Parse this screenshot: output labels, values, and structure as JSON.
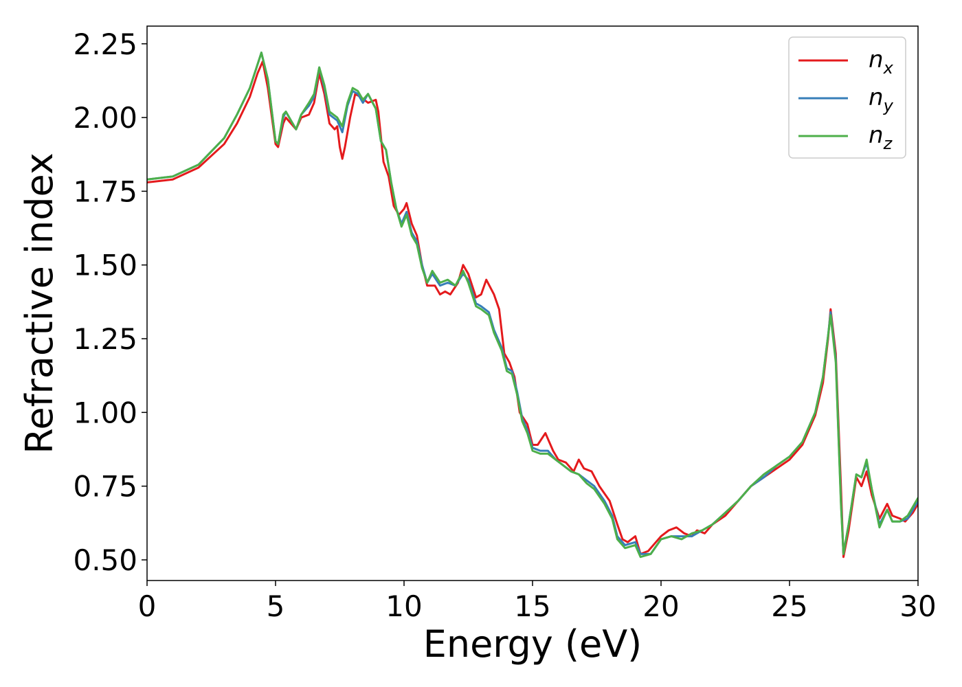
{
  "chart_data": {
    "type": "line",
    "title": "",
    "xlabel": "Energy (eV)",
    "ylabel": "Refractive index",
    "xlim": [
      0,
      30
    ],
    "ylim": [
      0.43,
      2.31
    ],
    "xticks": [
      0,
      5,
      10,
      15,
      20,
      25,
      30
    ],
    "xtick_labels": [
      "0",
      "5",
      "10",
      "15",
      "20",
      "25",
      "30"
    ],
    "yticks": [
      0.5,
      0.75,
      1.0,
      1.25,
      1.5,
      1.75,
      2.0,
      2.25
    ],
    "ytick_labels": [
      "0.50",
      "0.75",
      "1.00",
      "1.25",
      "1.50",
      "1.75",
      "2.00",
      "2.25"
    ],
    "grid": false,
    "legend_position": "top-right",
    "series": [
      {
        "name": "n",
        "subscript": "x",
        "color": "#e41a1c",
        "points": [
          [
            0,
            1.78
          ],
          [
            1,
            1.79
          ],
          [
            2,
            1.83
          ],
          [
            3,
            1.91
          ],
          [
            3.5,
            1.98
          ],
          [
            4,
            2.07
          ],
          [
            4.3,
            2.15
          ],
          [
            4.5,
            2.19
          ],
          [
            4.7,
            2.1
          ],
          [
            5.0,
            1.91
          ],
          [
            5.1,
            1.9
          ],
          [
            5.3,
            1.98
          ],
          [
            5.4,
            2.0
          ],
          [
            5.6,
            1.98
          ],
          [
            5.8,
            1.96
          ],
          [
            6.0,
            2.0
          ],
          [
            6.3,
            2.01
          ],
          [
            6.5,
            2.05
          ],
          [
            6.7,
            2.15
          ],
          [
            6.9,
            2.08
          ],
          [
            7.1,
            1.98
          ],
          [
            7.3,
            1.96
          ],
          [
            7.4,
            1.97
          ],
          [
            7.5,
            1.9
          ],
          [
            7.6,
            1.86
          ],
          [
            7.7,
            1.9
          ],
          [
            7.9,
            2.0
          ],
          [
            8.1,
            2.08
          ],
          [
            8.3,
            2.07
          ],
          [
            8.6,
            2.05
          ],
          [
            8.9,
            2.06
          ],
          [
            9.0,
            2.02
          ],
          [
            9.2,
            1.85
          ],
          [
            9.4,
            1.8
          ],
          [
            9.6,
            1.7
          ],
          [
            9.8,
            1.67
          ],
          [
            10.0,
            1.69
          ],
          [
            10.1,
            1.71
          ],
          [
            10.3,
            1.64
          ],
          [
            10.5,
            1.6
          ],
          [
            10.7,
            1.5
          ],
          [
            10.9,
            1.43
          ],
          [
            11.2,
            1.43
          ],
          [
            11.4,
            1.4
          ],
          [
            11.6,
            1.41
          ],
          [
            11.8,
            1.4
          ],
          [
            12.1,
            1.44
          ],
          [
            12.3,
            1.5
          ],
          [
            12.5,
            1.47
          ],
          [
            12.8,
            1.39
          ],
          [
            13.0,
            1.4
          ],
          [
            13.2,
            1.45
          ],
          [
            13.5,
            1.4
          ],
          [
            13.7,
            1.35
          ],
          [
            13.9,
            1.2
          ],
          [
            14.1,
            1.17
          ],
          [
            14.3,
            1.12
          ],
          [
            14.5,
            1.0
          ],
          [
            14.8,
            0.96
          ],
          [
            15.0,
            0.89
          ],
          [
            15.2,
            0.89
          ],
          [
            15.5,
            0.93
          ],
          [
            15.8,
            0.87
          ],
          [
            16.0,
            0.84
          ],
          [
            16.3,
            0.83
          ],
          [
            16.6,
            0.8
          ],
          [
            16.8,
            0.84
          ],
          [
            17.0,
            0.81
          ],
          [
            17.3,
            0.8
          ],
          [
            17.6,
            0.75
          ],
          [
            18.0,
            0.7
          ],
          [
            18.3,
            0.62
          ],
          [
            18.5,
            0.57
          ],
          [
            18.7,
            0.56
          ],
          [
            19.0,
            0.58
          ],
          [
            19.2,
            0.52
          ],
          [
            19.5,
            0.53
          ],
          [
            19.8,
            0.56
          ],
          [
            20.0,
            0.58
          ],
          [
            20.3,
            0.6
          ],
          [
            20.6,
            0.61
          ],
          [
            20.9,
            0.59
          ],
          [
            21.2,
            0.58
          ],
          [
            21.4,
            0.6
          ],
          [
            21.7,
            0.59
          ],
          [
            22.0,
            0.62
          ],
          [
            22.5,
            0.65
          ],
          [
            23.0,
            0.7
          ],
          [
            23.5,
            0.75
          ],
          [
            24.0,
            0.78
          ],
          [
            24.5,
            0.81
          ],
          [
            25.0,
            0.84
          ],
          [
            25.5,
            0.89
          ],
          [
            26.0,
            0.99
          ],
          [
            26.3,
            1.1
          ],
          [
            26.5,
            1.25
          ],
          [
            26.6,
            1.35
          ],
          [
            26.8,
            1.2
          ],
          [
            27.0,
            0.75
          ],
          [
            27.1,
            0.51
          ],
          [
            27.3,
            0.6
          ],
          [
            27.6,
            0.78
          ],
          [
            27.8,
            0.75
          ],
          [
            28.0,
            0.8
          ],
          [
            28.2,
            0.72
          ],
          [
            28.5,
            0.64
          ],
          [
            28.8,
            0.69
          ],
          [
            29.0,
            0.65
          ],
          [
            29.3,
            0.64
          ],
          [
            29.5,
            0.63
          ],
          [
            29.8,
            0.66
          ],
          [
            30,
            0.69
          ]
        ]
      },
      {
        "name": "n",
        "subscript": "y",
        "color": "#377eb8",
        "points": [
          [
            0,
            1.79
          ],
          [
            1,
            1.8
          ],
          [
            2,
            1.84
          ],
          [
            3,
            1.93
          ],
          [
            3.5,
            2.01
          ],
          [
            4,
            2.1
          ],
          [
            4.3,
            2.18
          ],
          [
            4.45,
            2.22
          ],
          [
            4.7,
            2.13
          ],
          [
            5.0,
            1.92
          ],
          [
            5.1,
            1.91
          ],
          [
            5.3,
            2.0
          ],
          [
            5.4,
            2.02
          ],
          [
            5.6,
            1.99
          ],
          [
            5.8,
            1.96
          ],
          [
            6.0,
            2.01
          ],
          [
            6.3,
            2.04
          ],
          [
            6.5,
            2.07
          ],
          [
            6.7,
            2.17
          ],
          [
            6.9,
            2.1
          ],
          [
            7.1,
            2.01
          ],
          [
            7.4,
            1.99
          ],
          [
            7.6,
            1.95
          ],
          [
            7.8,
            2.04
          ],
          [
            8.0,
            2.09
          ],
          [
            8.2,
            2.08
          ],
          [
            8.4,
            2.05
          ],
          [
            8.6,
            2.08
          ],
          [
            8.9,
            2.03
          ],
          [
            9.1,
            1.92
          ],
          [
            9.3,
            1.89
          ],
          [
            9.5,
            1.78
          ],
          [
            9.7,
            1.69
          ],
          [
            9.9,
            1.64
          ],
          [
            10.1,
            1.68
          ],
          [
            10.3,
            1.61
          ],
          [
            10.5,
            1.58
          ],
          [
            10.7,
            1.5
          ],
          [
            10.9,
            1.44
          ],
          [
            11.1,
            1.47
          ],
          [
            11.4,
            1.43
          ],
          [
            11.7,
            1.44
          ],
          [
            12.0,
            1.43
          ],
          [
            12.3,
            1.47
          ],
          [
            12.5,
            1.45
          ],
          [
            12.8,
            1.37
          ],
          [
            13.0,
            1.36
          ],
          [
            13.3,
            1.34
          ],
          [
            13.5,
            1.28
          ],
          [
            13.8,
            1.22
          ],
          [
            14.0,
            1.15
          ],
          [
            14.2,
            1.14
          ],
          [
            14.4,
            1.07
          ],
          [
            14.6,
            0.98
          ],
          [
            14.8,
            0.94
          ],
          [
            15.0,
            0.88
          ],
          [
            15.3,
            0.87
          ],
          [
            15.6,
            0.87
          ],
          [
            15.9,
            0.84
          ],
          [
            16.2,
            0.82
          ],
          [
            16.5,
            0.8
          ],
          [
            16.8,
            0.79
          ],
          [
            17.1,
            0.77
          ],
          [
            17.4,
            0.75
          ],
          [
            17.8,
            0.7
          ],
          [
            18.1,
            0.65
          ],
          [
            18.3,
            0.58
          ],
          [
            18.6,
            0.55
          ],
          [
            19.0,
            0.56
          ],
          [
            19.2,
            0.52
          ],
          [
            19.6,
            0.52
          ],
          [
            20.0,
            0.57
          ],
          [
            20.4,
            0.58
          ],
          [
            20.8,
            0.58
          ],
          [
            21.2,
            0.58
          ],
          [
            21.6,
            0.6
          ],
          [
            22.0,
            0.62
          ],
          [
            22.5,
            0.66
          ],
          [
            23.0,
            0.7
          ],
          [
            23.5,
            0.75
          ],
          [
            24.0,
            0.78
          ],
          [
            24.5,
            0.82
          ],
          [
            25.0,
            0.85
          ],
          [
            25.5,
            0.9
          ],
          [
            26.0,
            1.0
          ],
          [
            26.3,
            1.12
          ],
          [
            26.5,
            1.26
          ],
          [
            26.6,
            1.34
          ],
          [
            26.8,
            1.18
          ],
          [
            27.0,
            0.7
          ],
          [
            27.1,
            0.52
          ],
          [
            27.3,
            0.62
          ],
          [
            27.6,
            0.79
          ],
          [
            27.8,
            0.78
          ],
          [
            28.0,
            0.83
          ],
          [
            28.2,
            0.74
          ],
          [
            28.5,
            0.62
          ],
          [
            28.8,
            0.67
          ],
          [
            29.0,
            0.63
          ],
          [
            29.3,
            0.63
          ],
          [
            29.6,
            0.64
          ],
          [
            30,
            0.7
          ]
        ]
      },
      {
        "name": "n",
        "subscript": "z",
        "color": "#4daf4a",
        "points": [
          [
            0,
            1.79
          ],
          [
            1,
            1.8
          ],
          [
            2,
            1.84
          ],
          [
            3,
            1.93
          ],
          [
            3.5,
            2.01
          ],
          [
            4,
            2.1
          ],
          [
            4.3,
            2.18
          ],
          [
            4.45,
            2.22
          ],
          [
            4.7,
            2.13
          ],
          [
            5.0,
            1.92
          ],
          [
            5.1,
            1.91
          ],
          [
            5.3,
            2.01
          ],
          [
            5.4,
            2.02
          ],
          [
            5.6,
            1.99
          ],
          [
            5.8,
            1.96
          ],
          [
            6.0,
            2.01
          ],
          [
            6.3,
            2.05
          ],
          [
            6.5,
            2.08
          ],
          [
            6.7,
            2.17
          ],
          [
            6.9,
            2.11
          ],
          [
            7.1,
            2.02
          ],
          [
            7.4,
            2.0
          ],
          [
            7.6,
            1.97
          ],
          [
            7.8,
            2.05
          ],
          [
            8.0,
            2.1
          ],
          [
            8.2,
            2.09
          ],
          [
            8.4,
            2.06
          ],
          [
            8.6,
            2.08
          ],
          [
            8.9,
            2.03
          ],
          [
            9.1,
            1.92
          ],
          [
            9.3,
            1.89
          ],
          [
            9.5,
            1.78
          ],
          [
            9.7,
            1.69
          ],
          [
            9.9,
            1.63
          ],
          [
            10.1,
            1.67
          ],
          [
            10.3,
            1.6
          ],
          [
            10.5,
            1.57
          ],
          [
            10.7,
            1.49
          ],
          [
            10.9,
            1.44
          ],
          [
            11.1,
            1.48
          ],
          [
            11.4,
            1.44
          ],
          [
            11.7,
            1.45
          ],
          [
            12.0,
            1.43
          ],
          [
            12.3,
            1.48
          ],
          [
            12.5,
            1.44
          ],
          [
            12.8,
            1.36
          ],
          [
            13.0,
            1.35
          ],
          [
            13.3,
            1.33
          ],
          [
            13.5,
            1.27
          ],
          [
            13.8,
            1.21
          ],
          [
            14.0,
            1.14
          ],
          [
            14.2,
            1.13
          ],
          [
            14.4,
            1.06
          ],
          [
            14.6,
            0.97
          ],
          [
            14.8,
            0.93
          ],
          [
            15.0,
            0.87
          ],
          [
            15.3,
            0.86
          ],
          [
            15.6,
            0.86
          ],
          [
            15.9,
            0.84
          ],
          [
            16.2,
            0.82
          ],
          [
            16.5,
            0.8
          ],
          [
            16.8,
            0.79
          ],
          [
            17.1,
            0.76
          ],
          [
            17.4,
            0.74
          ],
          [
            17.8,
            0.69
          ],
          [
            18.1,
            0.64
          ],
          [
            18.3,
            0.57
          ],
          [
            18.6,
            0.54
          ],
          [
            19.0,
            0.55
          ],
          [
            19.2,
            0.51
          ],
          [
            19.6,
            0.52
          ],
          [
            20.0,
            0.57
          ],
          [
            20.4,
            0.58
          ],
          [
            20.8,
            0.57
          ],
          [
            21.2,
            0.59
          ],
          [
            21.6,
            0.6
          ],
          [
            22.0,
            0.62
          ],
          [
            22.5,
            0.66
          ],
          [
            23.0,
            0.7
          ],
          [
            23.5,
            0.75
          ],
          [
            24.0,
            0.79
          ],
          [
            24.5,
            0.82
          ],
          [
            25.0,
            0.85
          ],
          [
            25.5,
            0.9
          ],
          [
            26.0,
            1.0
          ],
          [
            26.3,
            1.12
          ],
          [
            26.5,
            1.26
          ],
          [
            26.6,
            1.33
          ],
          [
            26.8,
            1.17
          ],
          [
            27.0,
            0.69
          ],
          [
            27.1,
            0.52
          ],
          [
            27.3,
            0.62
          ],
          [
            27.6,
            0.79
          ],
          [
            27.8,
            0.78
          ],
          [
            28.0,
            0.84
          ],
          [
            28.2,
            0.74
          ],
          [
            28.5,
            0.61
          ],
          [
            28.8,
            0.67
          ],
          [
            29.0,
            0.63
          ],
          [
            29.3,
            0.63
          ],
          [
            29.6,
            0.65
          ],
          [
            30,
            0.71
          ]
        ]
      }
    ]
  }
}
